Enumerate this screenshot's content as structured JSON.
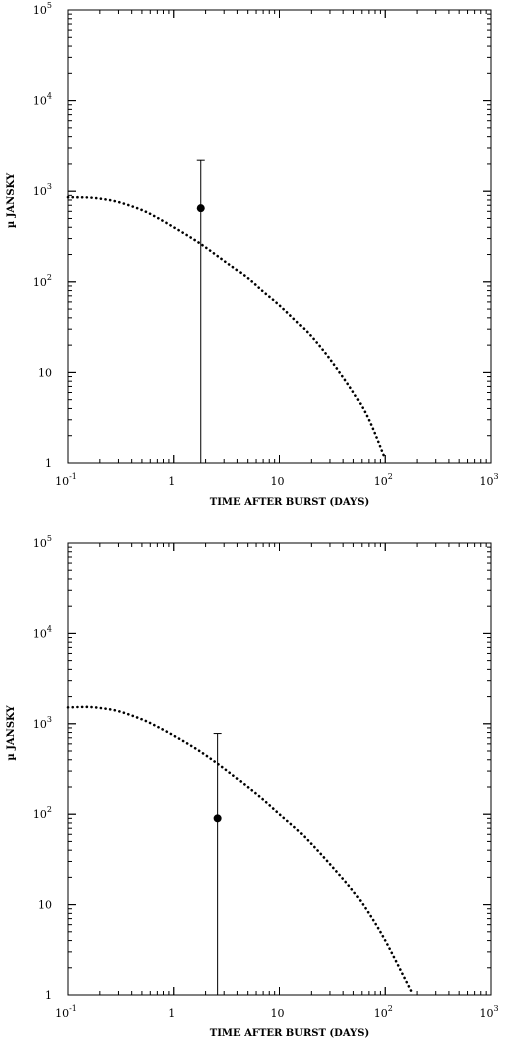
{
  "chart_data": [
    {
      "type": "scatter",
      "xlabel": "TIME AFTER BURST (DAYS)",
      "ylabel": "µ JANSKY",
      "xscale": "log",
      "yscale": "log",
      "xlim": [
        0.1,
        1000
      ],
      "ylim": [
        1,
        100000
      ],
      "x_tick_labels": [
        {
          "value": 0.1,
          "base": "10",
          "exp": "-1"
        },
        {
          "value": 1,
          "base": "1",
          "exp": ""
        },
        {
          "value": 10,
          "base": "10",
          "exp": ""
        },
        {
          "value": 100,
          "base": "10",
          "exp": "2"
        },
        {
          "value": 1000,
          "base": "10",
          "exp": "3"
        }
      ],
      "y_tick_labels": [
        {
          "value": 1,
          "base": "1",
          "exp": ""
        },
        {
          "value": 10,
          "base": "10",
          "exp": ""
        },
        {
          "value": 100,
          "base": "10",
          "exp": "2"
        },
        {
          "value": 1000,
          "base": "10",
          "exp": "3"
        },
        {
          "value": 10000,
          "base": "10",
          "exp": "4"
        },
        {
          "value": 100000,
          "base": "10",
          "exp": "5"
        }
      ],
      "observation": {
        "x": 1.8,
        "y": 650,
        "y_upper": 2200,
        "y_lower": 1
      },
      "model_curve": {
        "style": "dotted",
        "x": [
          0.1,
          0.15,
          0.2,
          0.3,
          0.5,
          0.7,
          1,
          1.5,
          2,
          3,
          5,
          7,
          10,
          15,
          20,
          30,
          50,
          70,
          100
        ],
        "y": [
          860,
          855,
          830,
          760,
          620,
          510,
          400,
          300,
          240,
          170,
          110,
          78,
          55,
          35,
          25,
          14,
          6,
          3,
          1.1
        ]
      }
    },
    {
      "type": "scatter",
      "xlabel": "TIME AFTER BURST (DAYS)",
      "ylabel": "µ JANSKY",
      "xscale": "log",
      "yscale": "log",
      "xlim": [
        0.1,
        1000
      ],
      "ylim": [
        1,
        100000
      ],
      "x_tick_labels": [
        {
          "value": 0.1,
          "base": "10",
          "exp": "-1"
        },
        {
          "value": 1,
          "base": "1",
          "exp": ""
        },
        {
          "value": 10,
          "base": "10",
          "exp": ""
        },
        {
          "value": 100,
          "base": "10",
          "exp": "2"
        },
        {
          "value": 1000,
          "base": "10",
          "exp": "3"
        }
      ],
      "y_tick_labels": [
        {
          "value": 1,
          "base": "1",
          "exp": ""
        },
        {
          "value": 10,
          "base": "10",
          "exp": ""
        },
        {
          "value": 100,
          "base": "10",
          "exp": "2"
        },
        {
          "value": 1000,
          "base": "10",
          "exp": "3"
        },
        {
          "value": 10000,
          "base": "10",
          "exp": "4"
        },
        {
          "value": 100000,
          "base": "10",
          "exp": "5"
        }
      ],
      "observation": {
        "x": 2.6,
        "y": 90,
        "y_upper": 780,
        "y_lower": 1
      },
      "model_curve": {
        "style": "dotted",
        "x": [
          0.1,
          0.15,
          0.2,
          0.3,
          0.5,
          0.7,
          1,
          1.5,
          2,
          3,
          5,
          7,
          10,
          15,
          20,
          30,
          50,
          70,
          100,
          150,
          180
        ],
        "y": [
          1520,
          1540,
          1500,
          1380,
          1120,
          930,
          740,
          560,
          450,
          320,
          200,
          145,
          100,
          66,
          47,
          28,
          14,
          8,
          4,
          1.6,
          1.05
        ]
      }
    }
  ]
}
